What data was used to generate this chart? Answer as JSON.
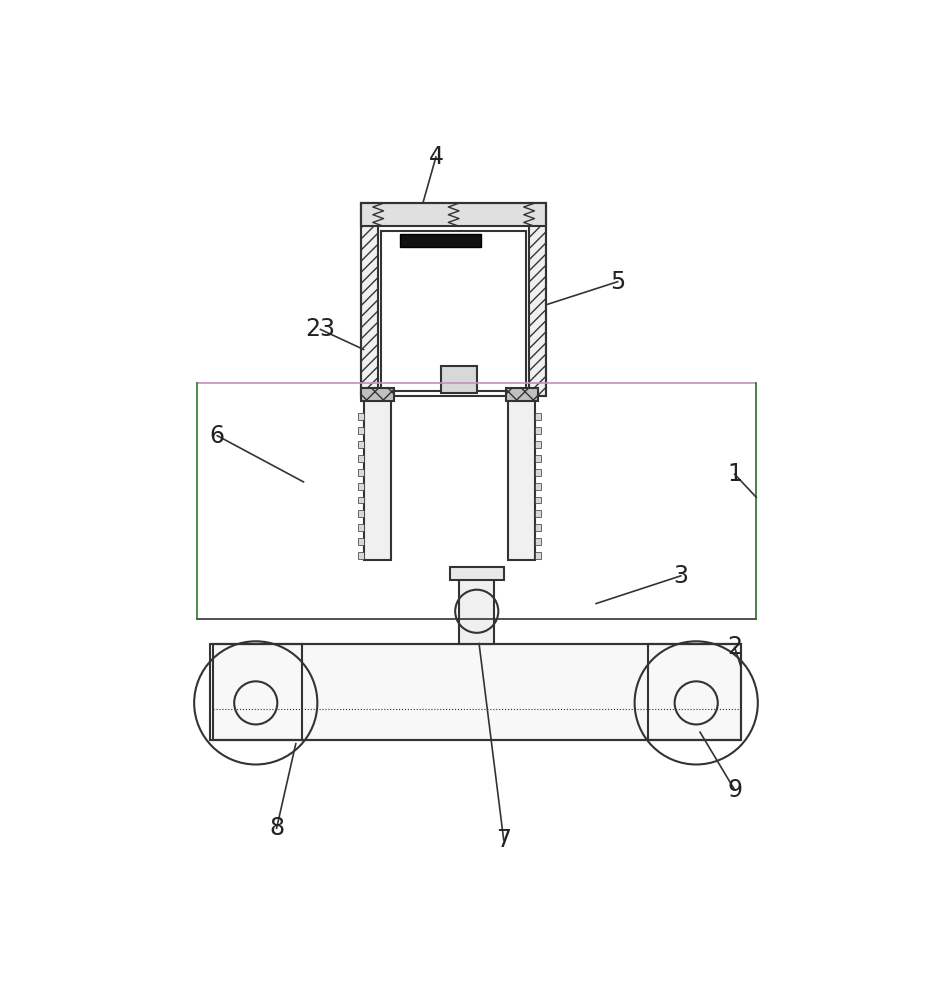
{
  "bg_color": "#ffffff",
  "line_color": "#333333",
  "label_color": "#222222",
  "fig_width": 9.31,
  "fig_height": 10.0
}
